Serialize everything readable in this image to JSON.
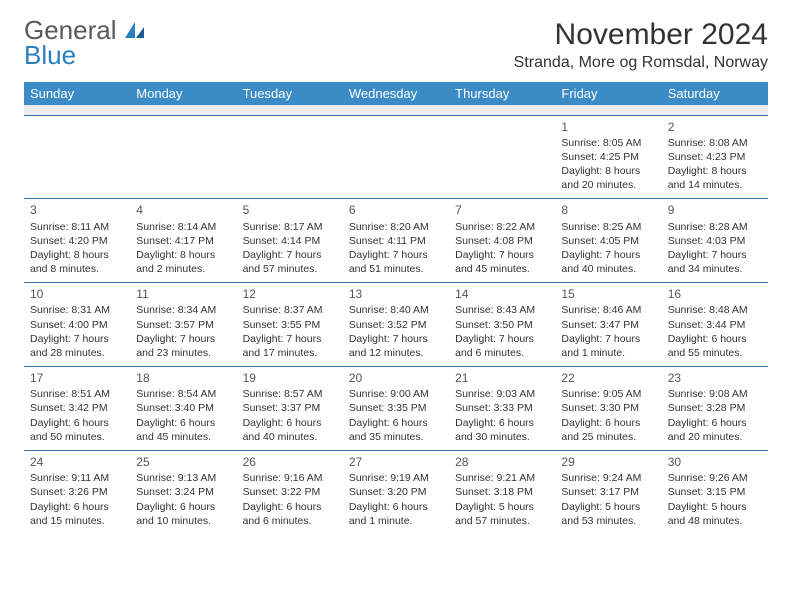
{
  "logo": {
    "line1": "General",
    "line2": "Blue"
  },
  "title": "November 2024",
  "location": "Stranda, More og Romsdal, Norway",
  "colors": {
    "header_bg": "#3b8bc7",
    "header_text": "#ffffff",
    "cell_border": "#3b6ea0",
    "spacer_bg": "#ececec",
    "text": "#333333",
    "logo_gray": "#5a5a5a",
    "logo_blue": "#2a7fbf"
  },
  "daynames": [
    "Sunday",
    "Monday",
    "Tuesday",
    "Wednesday",
    "Thursday",
    "Friday",
    "Saturday"
  ],
  "weeks": [
    [
      null,
      null,
      null,
      null,
      null,
      {
        "n": "1",
        "sunrise": "Sunrise: 8:05 AM",
        "sunset": "Sunset: 4:25 PM",
        "day1": "Daylight: 8 hours",
        "day2": "and 20 minutes."
      },
      {
        "n": "2",
        "sunrise": "Sunrise: 8:08 AM",
        "sunset": "Sunset: 4:23 PM",
        "day1": "Daylight: 8 hours",
        "day2": "and 14 minutes."
      }
    ],
    [
      {
        "n": "3",
        "sunrise": "Sunrise: 8:11 AM",
        "sunset": "Sunset: 4:20 PM",
        "day1": "Daylight: 8 hours",
        "day2": "and 8 minutes."
      },
      {
        "n": "4",
        "sunrise": "Sunrise: 8:14 AM",
        "sunset": "Sunset: 4:17 PM",
        "day1": "Daylight: 8 hours",
        "day2": "and 2 minutes."
      },
      {
        "n": "5",
        "sunrise": "Sunrise: 8:17 AM",
        "sunset": "Sunset: 4:14 PM",
        "day1": "Daylight: 7 hours",
        "day2": "and 57 minutes."
      },
      {
        "n": "6",
        "sunrise": "Sunrise: 8:20 AM",
        "sunset": "Sunset: 4:11 PM",
        "day1": "Daylight: 7 hours",
        "day2": "and 51 minutes."
      },
      {
        "n": "7",
        "sunrise": "Sunrise: 8:22 AM",
        "sunset": "Sunset: 4:08 PM",
        "day1": "Daylight: 7 hours",
        "day2": "and 45 minutes."
      },
      {
        "n": "8",
        "sunrise": "Sunrise: 8:25 AM",
        "sunset": "Sunset: 4:05 PM",
        "day1": "Daylight: 7 hours",
        "day2": "and 40 minutes."
      },
      {
        "n": "9",
        "sunrise": "Sunrise: 8:28 AM",
        "sunset": "Sunset: 4:03 PM",
        "day1": "Daylight: 7 hours",
        "day2": "and 34 minutes."
      }
    ],
    [
      {
        "n": "10",
        "sunrise": "Sunrise: 8:31 AM",
        "sunset": "Sunset: 4:00 PM",
        "day1": "Daylight: 7 hours",
        "day2": "and 28 minutes."
      },
      {
        "n": "11",
        "sunrise": "Sunrise: 8:34 AM",
        "sunset": "Sunset: 3:57 PM",
        "day1": "Daylight: 7 hours",
        "day2": "and 23 minutes."
      },
      {
        "n": "12",
        "sunrise": "Sunrise: 8:37 AM",
        "sunset": "Sunset: 3:55 PM",
        "day1": "Daylight: 7 hours",
        "day2": "and 17 minutes."
      },
      {
        "n": "13",
        "sunrise": "Sunrise: 8:40 AM",
        "sunset": "Sunset: 3:52 PM",
        "day1": "Daylight: 7 hours",
        "day2": "and 12 minutes."
      },
      {
        "n": "14",
        "sunrise": "Sunrise: 8:43 AM",
        "sunset": "Sunset: 3:50 PM",
        "day1": "Daylight: 7 hours",
        "day2": "and 6 minutes."
      },
      {
        "n": "15",
        "sunrise": "Sunrise: 8:46 AM",
        "sunset": "Sunset: 3:47 PM",
        "day1": "Daylight: 7 hours",
        "day2": "and 1 minute."
      },
      {
        "n": "16",
        "sunrise": "Sunrise: 8:48 AM",
        "sunset": "Sunset: 3:44 PM",
        "day1": "Daylight: 6 hours",
        "day2": "and 55 minutes."
      }
    ],
    [
      {
        "n": "17",
        "sunrise": "Sunrise: 8:51 AM",
        "sunset": "Sunset: 3:42 PM",
        "day1": "Daylight: 6 hours",
        "day2": "and 50 minutes."
      },
      {
        "n": "18",
        "sunrise": "Sunrise: 8:54 AM",
        "sunset": "Sunset: 3:40 PM",
        "day1": "Daylight: 6 hours",
        "day2": "and 45 minutes."
      },
      {
        "n": "19",
        "sunrise": "Sunrise: 8:57 AM",
        "sunset": "Sunset: 3:37 PM",
        "day1": "Daylight: 6 hours",
        "day2": "and 40 minutes."
      },
      {
        "n": "20",
        "sunrise": "Sunrise: 9:00 AM",
        "sunset": "Sunset: 3:35 PM",
        "day1": "Daylight: 6 hours",
        "day2": "and 35 minutes."
      },
      {
        "n": "21",
        "sunrise": "Sunrise: 9:03 AM",
        "sunset": "Sunset: 3:33 PM",
        "day1": "Daylight: 6 hours",
        "day2": "and 30 minutes."
      },
      {
        "n": "22",
        "sunrise": "Sunrise: 9:05 AM",
        "sunset": "Sunset: 3:30 PM",
        "day1": "Daylight: 6 hours",
        "day2": "and 25 minutes."
      },
      {
        "n": "23",
        "sunrise": "Sunrise: 9:08 AM",
        "sunset": "Sunset: 3:28 PM",
        "day1": "Daylight: 6 hours",
        "day2": "and 20 minutes."
      }
    ],
    [
      {
        "n": "24",
        "sunrise": "Sunrise: 9:11 AM",
        "sunset": "Sunset: 3:26 PM",
        "day1": "Daylight: 6 hours",
        "day2": "and 15 minutes."
      },
      {
        "n": "25",
        "sunrise": "Sunrise: 9:13 AM",
        "sunset": "Sunset: 3:24 PM",
        "day1": "Daylight: 6 hours",
        "day2": "and 10 minutes."
      },
      {
        "n": "26",
        "sunrise": "Sunrise: 9:16 AM",
        "sunset": "Sunset: 3:22 PM",
        "day1": "Daylight: 6 hours",
        "day2": "and 6 minutes."
      },
      {
        "n": "27",
        "sunrise": "Sunrise: 9:19 AM",
        "sunset": "Sunset: 3:20 PM",
        "day1": "Daylight: 6 hours",
        "day2": "and 1 minute."
      },
      {
        "n": "28",
        "sunrise": "Sunrise: 9:21 AM",
        "sunset": "Sunset: 3:18 PM",
        "day1": "Daylight: 5 hours",
        "day2": "and 57 minutes."
      },
      {
        "n": "29",
        "sunrise": "Sunrise: 9:24 AM",
        "sunset": "Sunset: 3:17 PM",
        "day1": "Daylight: 5 hours",
        "day2": "and 53 minutes."
      },
      {
        "n": "30",
        "sunrise": "Sunrise: 9:26 AM",
        "sunset": "Sunset: 3:15 PM",
        "day1": "Daylight: 5 hours",
        "day2": "and 48 minutes."
      }
    ]
  ]
}
